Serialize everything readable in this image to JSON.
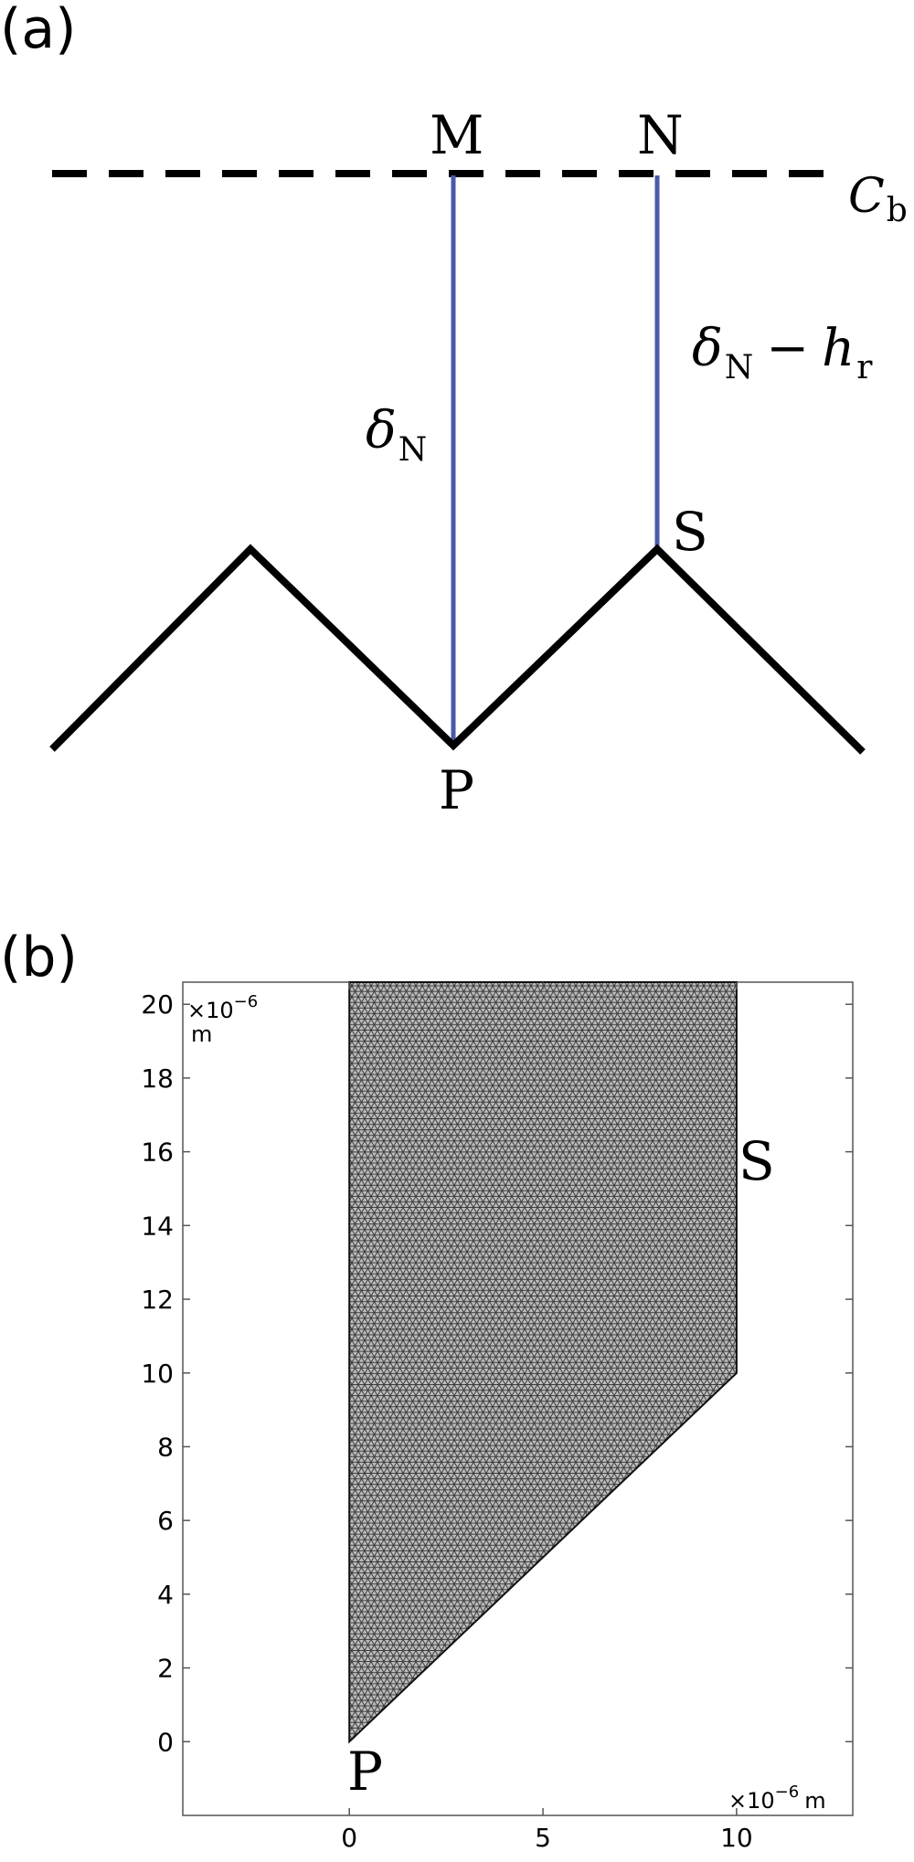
{
  "panel_a": {
    "label": "(a)",
    "point_m": "M",
    "point_n": "N",
    "point_p": "P",
    "point_s": "S",
    "bulk_label": {
      "main": "C",
      "sub": "b"
    },
    "depth_label": {
      "main": "δ",
      "sub": "N"
    },
    "offset_label": {
      "main": "δ",
      "sub1": "N",
      "minus": "−",
      "h": "h",
      "sub2": "r"
    },
    "colors": {
      "profile": "#000000",
      "normals": "#4a5aa8"
    }
  },
  "panel_b": {
    "label": "(b)",
    "point_p": "P",
    "point_s": "S",
    "y_unit_scale": "×10",
    "y_unit_exp": "−6",
    "y_unit_m": "m",
    "x_unit_text": "×10",
    "x_unit_exp": "−6",
    "x_unit_m": "m",
    "mesh_colors": {
      "fill": "#bdbdbd",
      "lines": "#3a3a3a"
    }
  },
  "chart_data": {
    "type": "scatter",
    "title": "",
    "xlabel": "×10⁻⁶ m",
    "ylabel": "×10⁻⁶ m",
    "x_ticks": [
      0,
      5,
      10
    ],
    "y_ticks": [
      0,
      2,
      4,
      6,
      8,
      10,
      12,
      14,
      16,
      18,
      20
    ],
    "xlim": [
      -4.3,
      13
    ],
    "ylim": [
      -2,
      20.6
    ],
    "grid": false,
    "domain_polygon": [
      [
        0,
        0
      ],
      [
        10,
        10
      ],
      [
        10,
        20.6
      ],
      [
        0,
        20.6
      ]
    ]
  }
}
